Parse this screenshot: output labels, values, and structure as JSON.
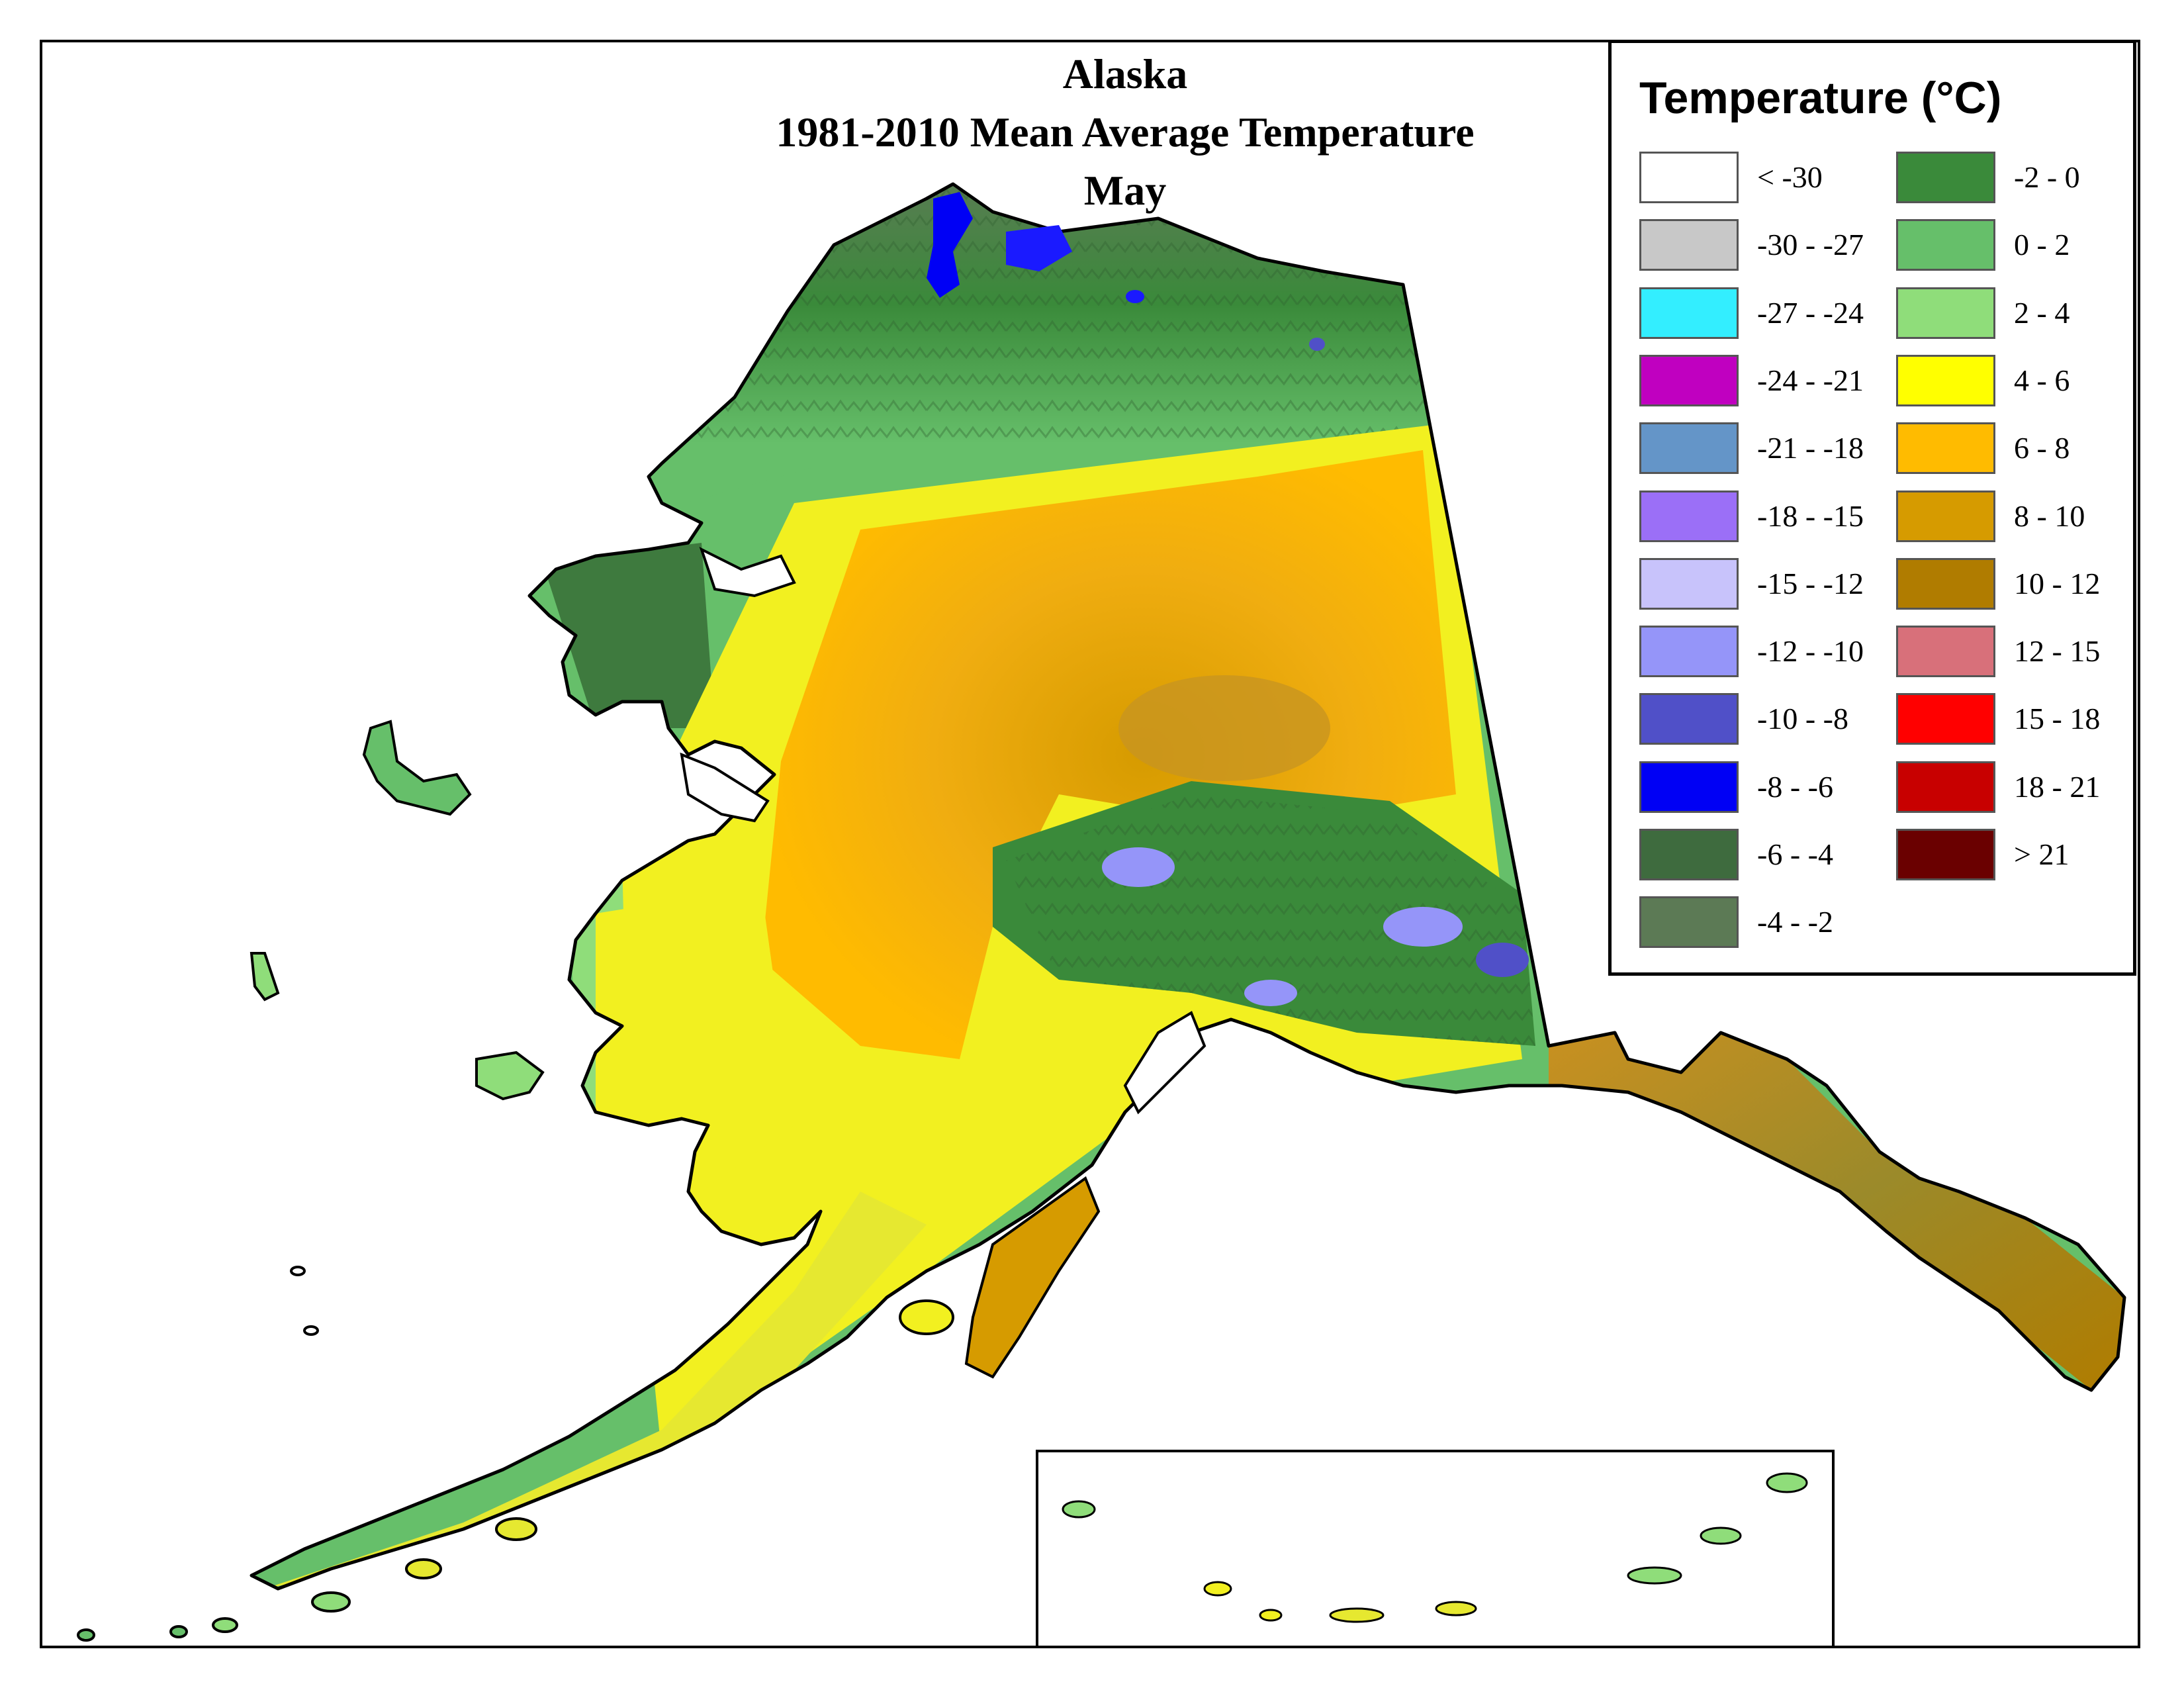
{
  "title": {
    "line1": "Alaska",
    "line2": "1981-2010 Mean Average Temperature",
    "line3": "May"
  },
  "legend": {
    "title": "Temperature (°C)",
    "items": [
      {
        "label": "< -30",
        "color": "#ffffff"
      },
      {
        "label": "-30 - -27",
        "color": "#c8c8c8"
      },
      {
        "label": "-27 - -24",
        "color": "#33eeff"
      },
      {
        "label": "-24 - -21",
        "color": "#c000c0"
      },
      {
        "label": "-21 - -18",
        "color": "#6495c8"
      },
      {
        "label": "-18 - -15",
        "color": "#9b6ff7"
      },
      {
        "label": "-15 - -12",
        "color": "#c8c3fb"
      },
      {
        "label": "-12 - -10",
        "color": "#9595f9"
      },
      {
        "label": "-10 - -8",
        "color": "#5050c8"
      },
      {
        "label": "-8 - -6",
        "color": "#0000f5"
      },
      {
        "label": "-6 - -4",
        "color": "#3e6b3e"
      },
      {
        "label": "-4 - -2",
        "color": "#5c7a55"
      },
      {
        "label": "-2 - 0",
        "color": "#3a8a3a"
      },
      {
        "label": "0 - 2",
        "color": "#66bf6a"
      },
      {
        "label": "2 - 4",
        "color": "#8fdd7a"
      },
      {
        "label": "4 - 6",
        "color": "#ffff00"
      },
      {
        "label": "6 - 8",
        "color": "#ffbb00"
      },
      {
        "label": "8 - 10",
        "color": "#d69b00"
      },
      {
        "label": "10 - 12",
        "color": "#b07c00"
      },
      {
        "label": "12 - 15",
        "color": "#d8707a"
      },
      {
        "label": "15 - 18",
        "color": "#ff0000"
      },
      {
        "label": "18 - 21",
        "color": "#c80000"
      },
      {
        "label": "> 21",
        "color": "#6a0000"
      }
    ]
  }
}
